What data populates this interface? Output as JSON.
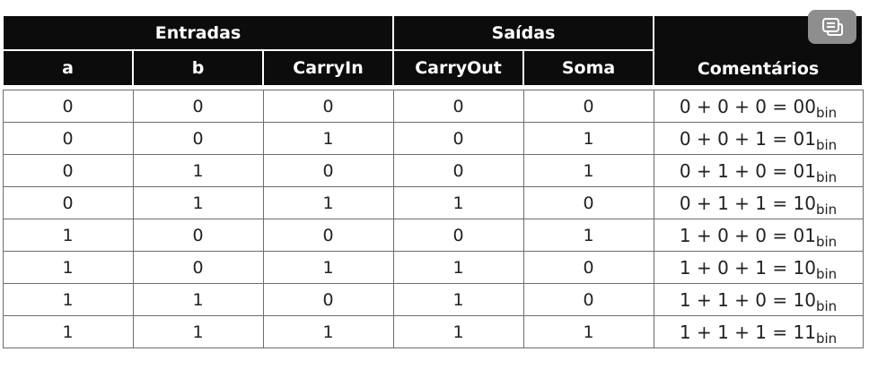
{
  "header": {
    "group_inputs": "Entradas",
    "group_outputs": "Saídas",
    "columns": [
      "a",
      "b",
      "CarryIn",
      "CarryOut",
      "Soma",
      "Comentários"
    ]
  },
  "rows": [
    {
      "a": "0",
      "b": "0",
      "cin": "0",
      "cout": "0",
      "soma": "0",
      "expr": "0 + 0 + 0 = 00",
      "sub": "bin"
    },
    {
      "a": "0",
      "b": "0",
      "cin": "1",
      "cout": "0",
      "soma": "1",
      "expr": "0 + 0 + 1 = 01",
      "sub": "bin"
    },
    {
      "a": "0",
      "b": "1",
      "cin": "0",
      "cout": "0",
      "soma": "1",
      "expr": "0 + 1 + 0 = 01",
      "sub": "bin"
    },
    {
      "a": "0",
      "b": "1",
      "cin": "1",
      "cout": "1",
      "soma": "0",
      "expr": "0 + 1 + 1 = 10",
      "sub": "bin"
    },
    {
      "a": "1",
      "b": "0",
      "cin": "0",
      "cout": "0",
      "soma": "1",
      "expr": "1 + 0 + 0 = 01",
      "sub": "bin"
    },
    {
      "a": "1",
      "b": "0",
      "cin": "1",
      "cout": "1",
      "soma": "0",
      "expr": "1 + 0 + 1 = 10",
      "sub": "bin"
    },
    {
      "a": "1",
      "b": "1",
      "cin": "0",
      "cout": "1",
      "soma": "0",
      "expr": "1 + 1 + 0 = 10",
      "sub": "bin"
    },
    {
      "a": "1",
      "b": "1",
      "cin": "1",
      "cout": "1",
      "soma": "1",
      "expr": "1 + 1 + 1 = 11",
      "sub": "bin"
    }
  ],
  "overlay": {
    "icon": "chat-bubble-icon"
  },
  "colors": {
    "header_bg": "#0c0c0c",
    "header_text": "#ffffff",
    "button_bg": "#8e8e8e",
    "border": "#6c6c6c"
  }
}
